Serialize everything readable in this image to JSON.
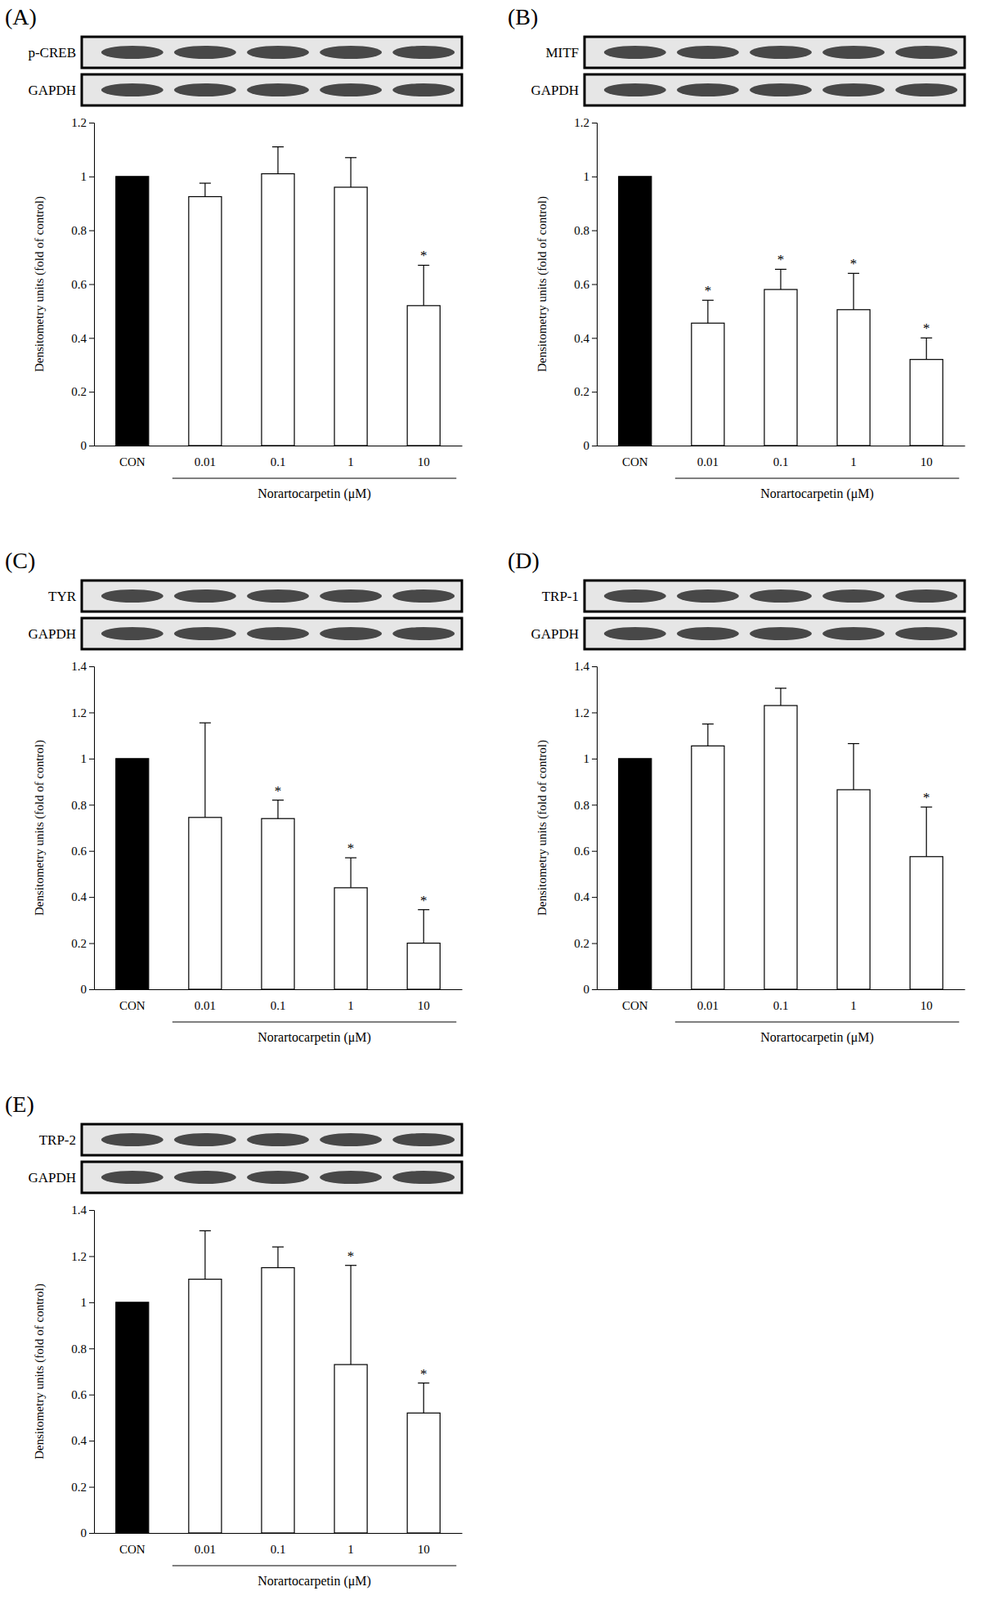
{
  "chart_data": [
    {
      "type": "bar",
      "title": "(A)",
      "blots": [
        "p-CREB",
        "GAPDH"
      ],
      "categories": [
        "CON",
        "0.01",
        "0.1",
        "1",
        "10"
      ],
      "values": [
        1,
        0.925,
        1.01,
        0.96,
        0.52
      ],
      "errors": [
        null,
        0.05,
        0.1,
        0.11,
        0.15
      ],
      "significance": [
        null,
        null,
        null,
        null,
        "*"
      ],
      "colors": [
        "#000000",
        "#ffffff",
        "#ffffff",
        "#ffffff",
        "#ffffff"
      ],
      "x_label": "Norartocarpetin (μM)",
      "y_label": "Densitometry units (fold of control)",
      "ylim": [
        0,
        1.2
      ],
      "yticks": [
        0,
        0.2,
        0.4,
        0.6,
        0.8,
        1,
        1.2
      ]
    },
    {
      "type": "bar",
      "title": "(B)",
      "blots": [
        "MITF",
        "GAPDH"
      ],
      "categories": [
        "CON",
        "0.01",
        "0.1",
        "1",
        "10"
      ],
      "values": [
        1,
        0.455,
        0.58,
        0.505,
        0.32
      ],
      "errors": [
        null,
        0.085,
        0.075,
        0.135,
        0.08
      ],
      "significance": [
        null,
        "*",
        "*",
        "*",
        "*"
      ],
      "colors": [
        "#000000",
        "#ffffff",
        "#ffffff",
        "#ffffff",
        "#ffffff"
      ],
      "x_label": "Norartocarpetin (μM)",
      "y_label": "Densitometry units (fold of control)",
      "ylim": [
        0,
        1.2
      ],
      "yticks": [
        0,
        0.2,
        0.4,
        0.6,
        0.8,
        1,
        1.2
      ]
    },
    {
      "type": "bar",
      "title": "(C)",
      "blots": [
        "TYR",
        "GAPDH"
      ],
      "categories": [
        "CON",
        "0.01",
        "0.1",
        "1",
        "10"
      ],
      "values": [
        1,
        0.745,
        0.74,
        0.44,
        0.2
      ],
      "errors": [
        null,
        0.41,
        0.08,
        0.13,
        0.145
      ],
      "significance": [
        null,
        null,
        "*",
        "*",
        "*"
      ],
      "colors": [
        "#000000",
        "#ffffff",
        "#ffffff",
        "#ffffff",
        "#ffffff"
      ],
      "x_label": "Norartocarpetin (μM)",
      "y_label": "Densitometry units (fold of control)",
      "ylim": [
        0,
        1.4
      ],
      "yticks": [
        0,
        0.2,
        0.4,
        0.6,
        0.8,
        1,
        1.2,
        1.4
      ]
    },
    {
      "type": "bar",
      "title": "(D)",
      "blots": [
        "TRP-1",
        "GAPDH"
      ],
      "categories": [
        "CON",
        "0.01",
        "0.1",
        "1",
        "10"
      ],
      "values": [
        1,
        1.055,
        1.23,
        0.865,
        0.575
      ],
      "errors": [
        null,
        0.095,
        0.075,
        0.2,
        0.215
      ],
      "significance": [
        null,
        null,
        null,
        null,
        "*"
      ],
      "colors": [
        "#000000",
        "#ffffff",
        "#ffffff",
        "#ffffff",
        "#ffffff"
      ],
      "x_label": "Norartocarpetin (μM)",
      "y_label": "Densitometry units (fold of control)",
      "ylim": [
        0,
        1.4
      ],
      "yticks": [
        0,
        0.2,
        0.4,
        0.6,
        0.8,
        1,
        1.2,
        1.4
      ]
    },
    {
      "type": "bar",
      "title": "(E)",
      "blots": [
        "TRP-2",
        "GAPDH"
      ],
      "categories": [
        "CON",
        "0.01",
        "0.1",
        "1",
        "10"
      ],
      "values": [
        1,
        1.1,
        1.15,
        0.73,
        0.52
      ],
      "errors": [
        null,
        0.21,
        0.09,
        0.43,
        0.13
      ],
      "significance": [
        null,
        null,
        null,
        "*",
        "*"
      ],
      "colors": [
        "#000000",
        "#ffffff",
        "#ffffff",
        "#ffffff",
        "#ffffff"
      ],
      "x_label": "Norartocarpetin (μM)",
      "y_label": "Densitometry units (fold of control)",
      "ylim": [
        0,
        1.4
      ],
      "yticks": [
        0,
        0.2,
        0.4,
        0.6,
        0.8,
        1,
        1.2,
        1.4
      ]
    }
  ]
}
